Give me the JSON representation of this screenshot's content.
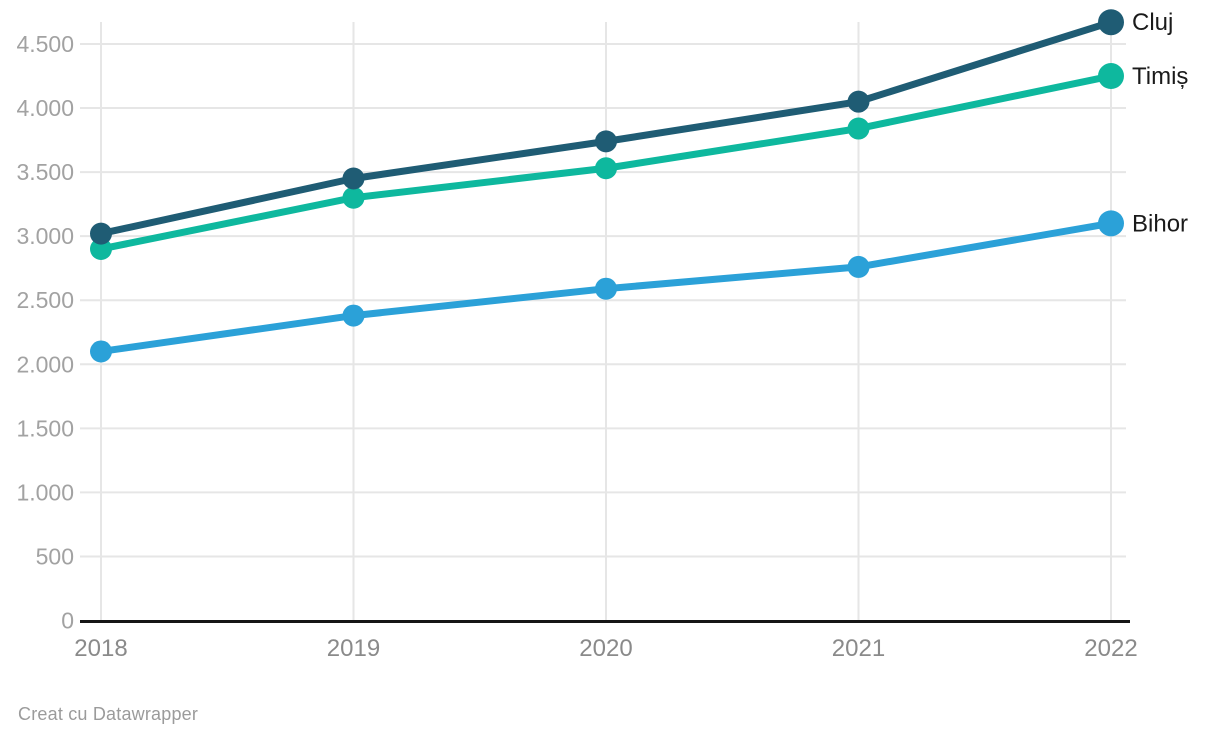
{
  "chart_data": {
    "type": "line",
    "x": [
      2018,
      2019,
      2020,
      2021,
      2022
    ],
    "xtick_labels": [
      "2018",
      "2019",
      "2020",
      "2021",
      "2022"
    ],
    "series": [
      {
        "name": "Cluj",
        "color": "#1f5c74",
        "values": [
          3020,
          3450,
          3740,
          4050,
          4670
        ]
      },
      {
        "name": "Timiș",
        "color": "#0eb89e",
        "values": [
          2900,
          3300,
          3530,
          3840,
          4250
        ]
      },
      {
        "name": "Bihor",
        "color": "#2ba1d8",
        "values": [
          2100,
          2380,
          2590,
          2760,
          3100
        ]
      }
    ],
    "title": "",
    "xlabel": "",
    "ylabel": "",
    "ylim": [
      0,
      4500
    ],
    "ytick_step": 500,
    "ytick_labels": [
      "0",
      "500",
      "1.000",
      "1.500",
      "2.000",
      "2.500",
      "3.000",
      "3.500",
      "4.000",
      "4.500"
    ],
    "grid": true,
    "legend_position": "labels-at-line-ends"
  },
  "theme": {
    "background": "#ffffff",
    "grid_color": "#e6e6e6",
    "axis_line_color": "#161616",
    "ytick_color": "#a2a2a2",
    "xtick_color": "#8a8a8a",
    "series_label_color": "#1a1a1a"
  },
  "footer": {
    "credit": "Creat cu Datawrapper"
  }
}
